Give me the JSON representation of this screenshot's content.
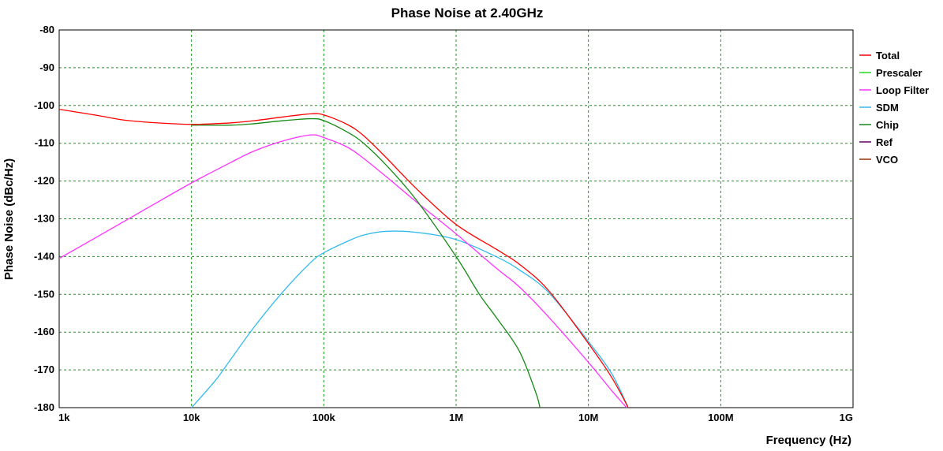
{
  "chart_data": {
    "type": "line",
    "title": "Phase Noise at 2.40GHz",
    "xlabel": "Frequency (Hz)",
    "ylabel": "Phase Noise (dBc/Hz)",
    "xscale": "log",
    "xlim": [
      1000,
      1000000000
    ],
    "ylim": [
      -180,
      -80
    ],
    "grid": true,
    "legend_position": "right",
    "x_ticks": [
      {
        "value": 1000,
        "label": "1k"
      },
      {
        "value": 10000,
        "label": "10k"
      },
      {
        "value": 100000,
        "label": "100k"
      },
      {
        "value": 1000000,
        "label": "1M"
      },
      {
        "value": 10000000,
        "label": "10M"
      },
      {
        "value": 100000000,
        "label": "100M"
      },
      {
        "value": 1000000000,
        "label": "1G"
      }
    ],
    "y_ticks": [
      {
        "value": -80,
        "label": "-80"
      },
      {
        "value": -90,
        "label": "-90"
      },
      {
        "value": -100,
        "label": "-100"
      },
      {
        "value": -110,
        "label": "-110"
      },
      {
        "value": -120,
        "label": "-120"
      },
      {
        "value": -130,
        "label": "-130"
      },
      {
        "value": -140,
        "label": "-140"
      },
      {
        "value": -150,
        "label": "-150"
      },
      {
        "value": -160,
        "label": "-160"
      },
      {
        "value": -170,
        "label": "-170"
      },
      {
        "value": -180,
        "label": "-180"
      }
    ],
    "series": [
      {
        "name": "Total",
        "color": "#ff0000",
        "points": [
          [
            1000,
            -101
          ],
          [
            2000,
            -102.7
          ],
          [
            3000,
            -103.8
          ],
          [
            5000,
            -104.5
          ],
          [
            10000,
            -105
          ],
          [
            20000,
            -104.6
          ],
          [
            30000,
            -104
          ],
          [
            50000,
            -103
          ],
          [
            80000,
            -102.2
          ],
          [
            100000,
            -102.5
          ],
          [
            150000,
            -105
          ],
          [
            200000,
            -108
          ],
          [
            300000,
            -114
          ],
          [
            500000,
            -122
          ],
          [
            1000000,
            -131.5
          ],
          [
            2000000,
            -138
          ],
          [
            3000000,
            -142
          ],
          [
            5000000,
            -149
          ],
          [
            10000000,
            -163
          ],
          [
            15000000,
            -172
          ],
          [
            20000000,
            -180
          ]
        ]
      },
      {
        "name": "Prescaler",
        "color": "#22dd22",
        "points": []
      },
      {
        "name": "Loop Filter",
        "color": "#ff33ff",
        "points": [
          [
            1000,
            -140.5
          ],
          [
            2000,
            -134.5
          ],
          [
            5000,
            -126.5
          ],
          [
            10000,
            -120.5
          ],
          [
            20000,
            -115
          ],
          [
            30000,
            -112
          ],
          [
            50000,
            -109.3
          ],
          [
            80000,
            -107.8
          ],
          [
            100000,
            -108.5
          ],
          [
            150000,
            -111
          ],
          [
            200000,
            -114
          ],
          [
            300000,
            -119
          ],
          [
            500000,
            -125.5
          ],
          [
            1000000,
            -134
          ],
          [
            2000000,
            -143
          ],
          [
            3000000,
            -148
          ],
          [
            5000000,
            -156
          ],
          [
            10000000,
            -168
          ],
          [
            15000000,
            -175.5
          ],
          [
            20000000,
            -180.5
          ]
        ]
      },
      {
        "name": "SDM",
        "color": "#33bbee",
        "points": [
          [
            10000,
            -180
          ],
          [
            15000,
            -173
          ],
          [
            20000,
            -167
          ],
          [
            30000,
            -158.5
          ],
          [
            50000,
            -149
          ],
          [
            80000,
            -141.5
          ],
          [
            100000,
            -139
          ],
          [
            150000,
            -136
          ],
          [
            200000,
            -134.3
          ],
          [
            300000,
            -133.3
          ],
          [
            500000,
            -133.6
          ],
          [
            1000000,
            -135.5
          ],
          [
            2000000,
            -140
          ],
          [
            3000000,
            -143.5
          ],
          [
            5000000,
            -149.5
          ],
          [
            10000000,
            -162.5
          ],
          [
            15000000,
            -171
          ],
          [
            20000000,
            -180
          ]
        ]
      },
      {
        "name": "Chip",
        "color": "#168a16",
        "points": [
          [
            10000,
            -105.2
          ],
          [
            20000,
            -105.2
          ],
          [
            30000,
            -104.8
          ],
          [
            50000,
            -104
          ],
          [
            80000,
            -103.5
          ],
          [
            100000,
            -104
          ],
          [
            150000,
            -107
          ],
          [
            200000,
            -110
          ],
          [
            300000,
            -116
          ],
          [
            500000,
            -125
          ],
          [
            1000000,
            -140
          ],
          [
            1500000,
            -150
          ],
          [
            2000000,
            -156
          ],
          [
            3000000,
            -165
          ],
          [
            4000000,
            -176
          ],
          [
            4300000,
            -180
          ]
        ]
      },
      {
        "name": "Ref",
        "color": "#660066",
        "points": []
      },
      {
        "name": "VCO",
        "color": "#993300",
        "points": []
      }
    ]
  }
}
